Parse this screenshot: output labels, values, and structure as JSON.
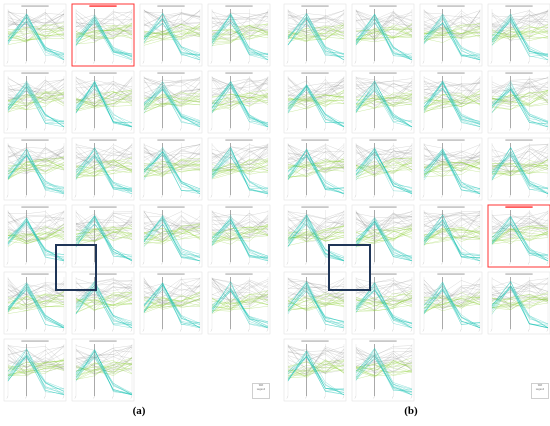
{
  "captions": {
    "left": "(a)",
    "right": "(b)"
  },
  "colors": {
    "grey": "#8a8a8a",
    "green": "#8fd13a",
    "cyan": "#17c2b4",
    "highlight": "#ff3333",
    "selection": "#1f3557"
  },
  "chart_data": {
    "type": "line",
    "description_kind": "grid of small-multiple parallel-coordinate plots, two panels",
    "series": [
      {
        "name": "group-grey"
      },
      {
        "name": "group-green"
      },
      {
        "name": "group-cyan"
      }
    ],
    "panels": [
      {
        "label": "(a)",
        "plot_count": 22,
        "highlighted_plot_index": 1
      },
      {
        "label": "(b)",
        "plot_count": 22,
        "highlighted_plot_index": 15
      }
    ]
  },
  "legend": {
    "line1": "Wilt",
    "line2": "Legend"
  }
}
